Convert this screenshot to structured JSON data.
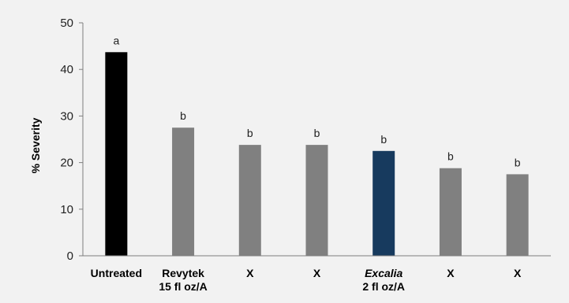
{
  "chart_data": {
    "type": "bar",
    "title": "",
    "xlabel": "",
    "ylabel": "% Severity",
    "ylim": [
      0,
      50
    ],
    "yticks": [
      0,
      10,
      20,
      30,
      40,
      50
    ],
    "grid": false,
    "legend": "none",
    "categories": [
      [
        "Untreated"
      ],
      [
        "Revytek",
        "15 fl oz/A"
      ],
      [
        "X"
      ],
      [
        "X"
      ],
      [
        "Excalia",
        "2 fl oz/A"
      ],
      [
        "X"
      ],
      [
        "X"
      ]
    ],
    "italic_first_line": [
      false,
      false,
      false,
      false,
      true,
      false,
      false
    ],
    "values": [
      43.7,
      27.5,
      23.8,
      23.8,
      22.5,
      18.8,
      17.5
    ],
    "data_labels": [
      "a",
      "b",
      "b",
      "b",
      "b",
      "b",
      "b"
    ],
    "colors": [
      "#000000",
      "#808080",
      "#808080",
      "#808080",
      "#173a5e",
      "#808080",
      "#808080"
    ]
  },
  "colors": {
    "background": "#f2f2f2",
    "axis": "#7f7f7f"
  }
}
